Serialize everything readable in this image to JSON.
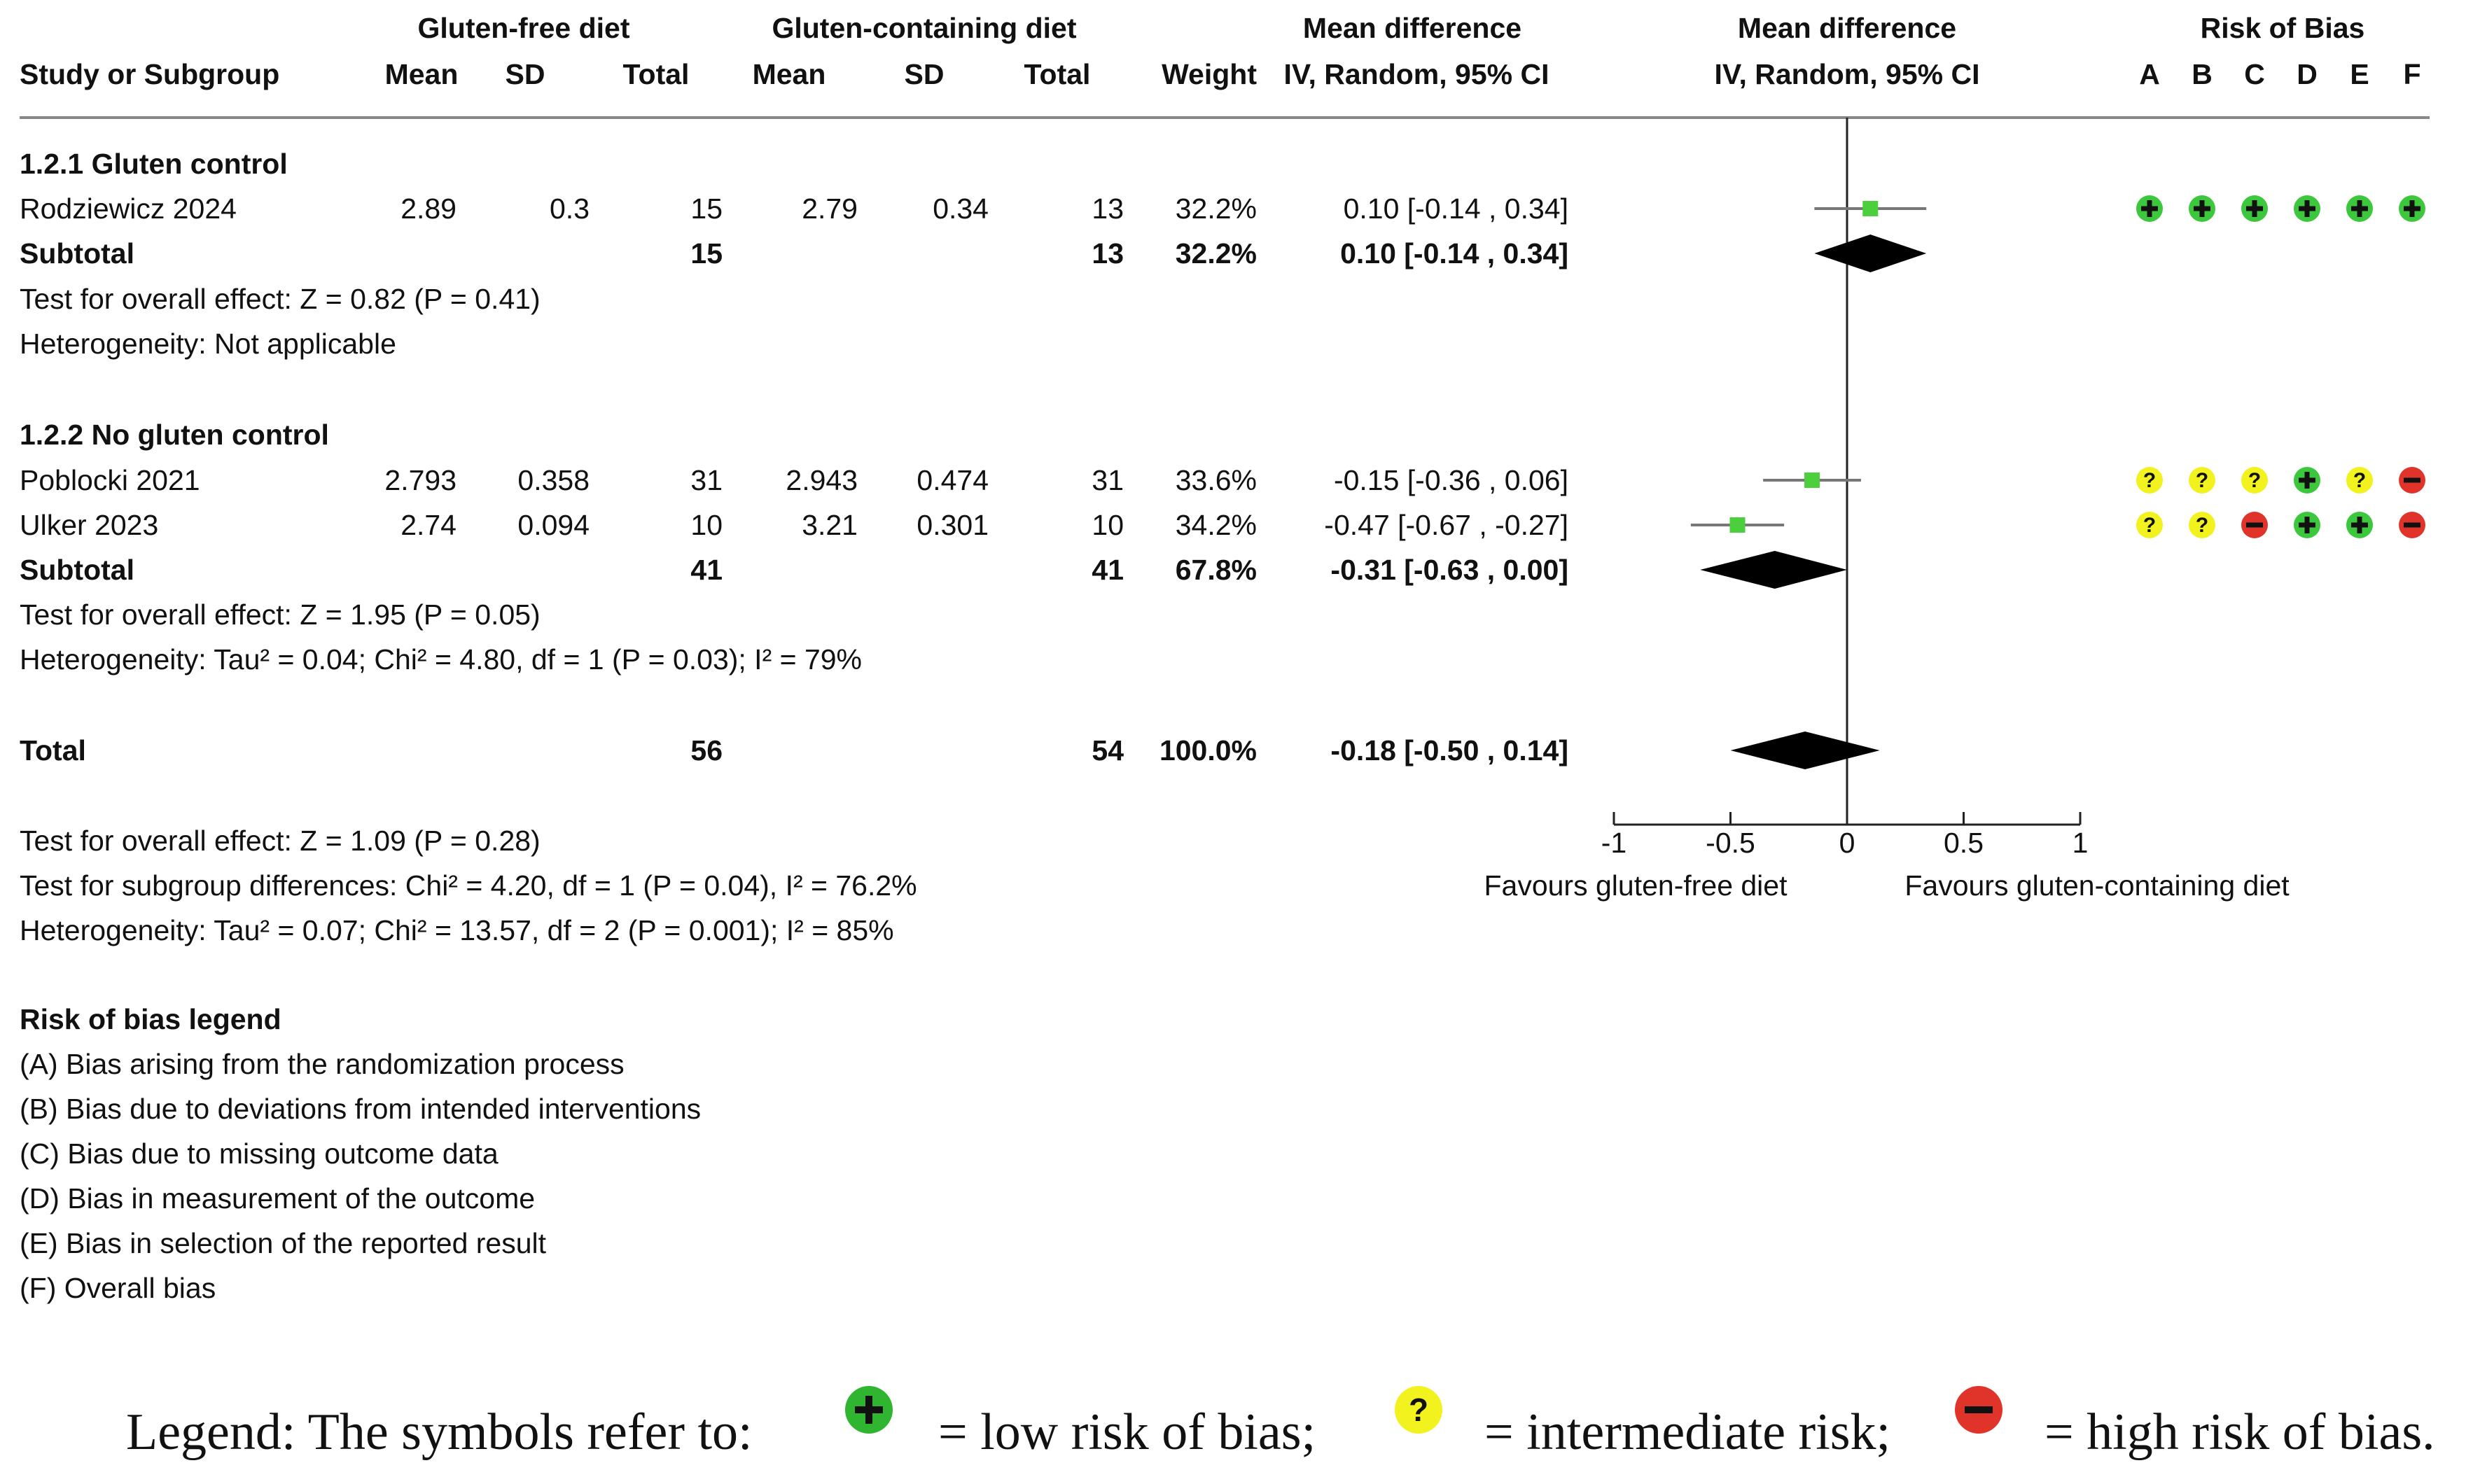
{
  "chart_data": {
    "type": "forest",
    "title": "",
    "group_headers": {
      "experimental": "Gluten-free diet",
      "control": "Gluten-containing diet",
      "effect_col": "Mean difference",
      "effect_plot": "Mean difference",
      "rob": "Risk of Bias"
    },
    "columns": {
      "study": "Study or Subgroup",
      "mean1": "Mean",
      "sd1": "SD",
      "total1": "Total",
      "mean2": "Mean",
      "sd2": "SD",
      "total2": "Total",
      "weight": "Weight",
      "ci": "IV, Random, 95% CI",
      "ci_plot": "IV, Random, 95% CI",
      "rob_letters": [
        "A",
        "B",
        "C",
        "D",
        "E",
        "F"
      ]
    },
    "subgroups": [
      {
        "title": "1.2.1 Gluten control",
        "studies": [
          {
            "name": "Rodziewicz 2024",
            "mean1": "2.89",
            "sd1": "0.3",
            "total1": "15",
            "mean2": "2.79",
            "sd2": "0.34",
            "total2": "13",
            "weight": "32.2%",
            "ci_text": "0.10 [-0.14 , 0.34]",
            "md": 0.1,
            "lo": -0.14,
            "hi": 0.34,
            "rob": [
              "low",
              "low",
              "low",
              "low",
              "low",
              "low"
            ]
          }
        ],
        "subtotal": {
          "label": "Subtotal",
          "total1": "15",
          "total2": "13",
          "weight": "32.2%",
          "ci_text": "0.10 [-0.14 , 0.34]",
          "md": 0.1,
          "lo": -0.14,
          "hi": 0.34
        },
        "overall_effect": "Test for overall effect: Z = 0.82 (P = 0.41)",
        "heterogeneity": "Heterogeneity: Not applicable"
      },
      {
        "title": "1.2.2 No gluten control",
        "studies": [
          {
            "name": "Poblocki 2021",
            "mean1": "2.793",
            "sd1": "0.358",
            "total1": "31",
            "mean2": "2.943",
            "sd2": "0.474",
            "total2": "31",
            "weight": "33.6%",
            "ci_text": "-0.15 [-0.36 , 0.06]",
            "md": -0.15,
            "lo": -0.36,
            "hi": 0.06,
            "rob": [
              "some",
              "some",
              "some",
              "low",
              "some",
              "high"
            ]
          },
          {
            "name": "Ulker 2023",
            "mean1": "2.74",
            "sd1": "0.094",
            "total1": "10",
            "mean2": "3.21",
            "sd2": "0.301",
            "total2": "10",
            "weight": "34.2%",
            "ci_text": "-0.47 [-0.67 , -0.27]",
            "md": -0.47,
            "lo": -0.67,
            "hi": -0.27,
            "rob": [
              "some",
              "some",
              "high",
              "low",
              "low",
              "high"
            ]
          }
        ],
        "subtotal": {
          "label": "Subtotal",
          "total1": "41",
          "total2": "41",
          "weight": "67.8%",
          "ci_text": "-0.31 [-0.63 , 0.00]",
          "md": -0.31,
          "lo": -0.63,
          "hi": 0.0
        },
        "overall_effect": "Test for overall effect: Z = 1.95 (P = 0.05)",
        "heterogeneity": "Heterogeneity: Tau² = 0.04; Chi² = 4.80, df = 1 (P = 0.03); I² = 79%"
      }
    ],
    "total": {
      "label": "Total",
      "total1": "56",
      "total2": "54",
      "weight": "100.0%",
      "ci_text": "-0.18 [-0.50 , 0.14]",
      "md": -0.18,
      "lo": -0.5,
      "hi": 0.14
    },
    "overall_tests": [
      "Test for overall effect: Z = 1.09 (P = 0.28)",
      "Test for subgroup differences: Chi² = 4.20, df = 1 (P = 0.04), I² = 76.2%",
      "Heterogeneity: Tau² = 0.07; Chi² = 13.57, df = 2 (P = 0.001); I² = 85%"
    ],
    "axis": {
      "xlim": [
        -1,
        1
      ],
      "ticks": [
        -1,
        -0.5,
        0,
        0.5,
        1
      ],
      "tick_labels": [
        "-1",
        "-0.5",
        "0",
        "0.5",
        "1"
      ],
      "favours_left": "Favours gluten-free diet",
      "favours_right": "Favours gluten-containing diet"
    },
    "rob_legend_title": "Risk of bias legend",
    "rob_legend": [
      "(A) Bias arising from the randomization process",
      "(B) Bias due to deviations from intended interventions",
      "(C) Bias due to missing outcome data",
      "(D) Bias in measurement of the outcome",
      "(E) Bias in selection of the reported result",
      "(F) Overall bias"
    ],
    "colors": {
      "low": "#3cc73c",
      "some": "#f2f21e",
      "high": "#e0332a",
      "study_marker": "#4ccf3c",
      "diamond": "#000000",
      "ci_line": "#777777"
    }
  },
  "legend_caption": {
    "lead": "Legend: The symbols refer to:",
    "low": "= low risk of bias;",
    "some": "= intermediate risk;",
    "high": "= high risk of bias."
  }
}
